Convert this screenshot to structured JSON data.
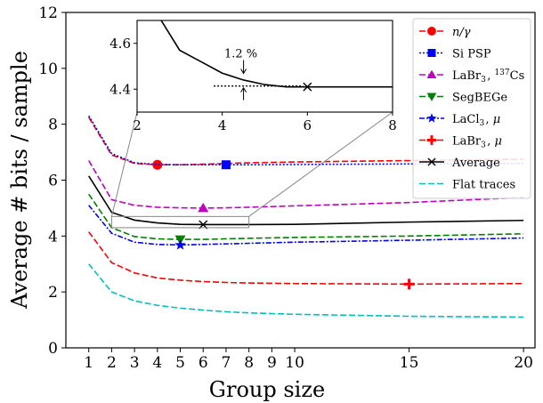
{
  "chart_data": {
    "type": "line",
    "title": "",
    "xlabel": "Group size",
    "ylabel": "Average # bits / sample",
    "xlim": [
      0,
      20.5
    ],
    "ylim": [
      0,
      12
    ],
    "xticks": [
      1,
      2,
      3,
      4,
      5,
      6,
      7,
      8,
      9,
      10,
      15,
      20
    ],
    "xticks_labels": [
      "1",
      "2",
      "3",
      "4",
      "5",
      "6",
      "7",
      "8",
      "9",
      "10",
      "15",
      "20"
    ],
    "yticks": [
      0,
      2,
      4,
      6,
      8,
      10,
      12
    ],
    "yticks_labels": [
      "0",
      "2",
      "4",
      "6",
      "8",
      "10",
      "12"
    ],
    "x": [
      1,
      2,
      3,
      4,
      5,
      6,
      7,
      8,
      10,
      15,
      20
    ],
    "series": [
      {
        "name": "n/γ",
        "color": "#ff0000",
        "dash": "dashed",
        "marker": "circle",
        "marker_x": 4,
        "values": [
          8.25,
          6.9,
          6.6,
          6.55,
          6.55,
          6.57,
          6.6,
          6.62,
          6.65,
          6.7,
          6.75
        ]
      },
      {
        "name": "Si PSP",
        "color": "#0000ff",
        "dash": "dotted",
        "marker": "square",
        "marker_x": 7,
        "values": [
          8.3,
          6.95,
          6.62,
          6.56,
          6.55,
          6.55,
          6.55,
          6.55,
          6.56,
          6.58,
          6.6
        ]
      },
      {
        "name": "LaBr3, 137Cs",
        "color": "#c000c0",
        "dash": "dashed",
        "marker": "triangle-up",
        "marker_x": 6,
        "values": [
          6.7,
          5.3,
          5.1,
          5.03,
          5.01,
          5.0,
          5.01,
          5.03,
          5.08,
          5.2,
          5.38
        ]
      },
      {
        "name": "SegBEGe",
        "color": "#008000",
        "dash": "dashed",
        "marker": "triangle-down",
        "marker_x": 5,
        "values": [
          5.5,
          4.3,
          3.98,
          3.9,
          3.88,
          3.88,
          3.9,
          3.92,
          3.95,
          4.0,
          4.08
        ]
      },
      {
        "name": "LaCl3, μ",
        "color": "#0000ff",
        "dash": "dashdot",
        "marker": "star",
        "marker_x": 5,
        "values": [
          5.1,
          4.1,
          3.78,
          3.7,
          3.68,
          3.7,
          3.72,
          3.74,
          3.78,
          3.85,
          3.93
        ]
      },
      {
        "name": "LaBr3, μ",
        "color": "#ff0000",
        "dash": "dashed",
        "marker": "plus",
        "marker_x": 15,
        "values": [
          4.15,
          3.05,
          2.68,
          2.5,
          2.42,
          2.37,
          2.34,
          2.32,
          2.3,
          2.28,
          2.3
        ]
      },
      {
        "name": "Average",
        "color": "#000000",
        "dash": "solid",
        "marker": "x",
        "marker_x": 6,
        "values": [
          6.15,
          4.85,
          4.57,
          4.47,
          4.42,
          4.41,
          4.41,
          4.41,
          4.42,
          4.5,
          4.56
        ]
      },
      {
        "name": "Flat traces",
        "color": "#00bfbf",
        "dash": "dashed",
        "marker": "none",
        "marker_x": null,
        "values": [
          3.0,
          2.0,
          1.68,
          1.52,
          1.42,
          1.35,
          1.29,
          1.25,
          1.2,
          1.13,
          1.1
        ]
      }
    ],
    "legend": {
      "placement": "upper-right",
      "entries": [
        {
          "prefix": "",
          "italic": "n/γ",
          "sup": "",
          "suffix": ""
        },
        {
          "prefix": "Si PSP",
          "italic": "",
          "sup": "",
          "suffix": ""
        },
        {
          "prefix": "LaBr",
          "sub": "3",
          "mid": ", ",
          "sup": "137",
          "suffix": "Cs",
          "italic": ""
        },
        {
          "prefix": "SegBEGe",
          "italic": "",
          "sup": "",
          "suffix": ""
        },
        {
          "prefix": "LaCl",
          "sub": "3",
          "mid": ", ",
          "italic": "μ",
          "sup": "",
          "suffix": ""
        },
        {
          "prefix": "LaBr",
          "sub": "3",
          "mid": ", ",
          "italic": "μ",
          "sup": "",
          "suffix": ""
        },
        {
          "prefix": "Average",
          "italic": "",
          "sup": "",
          "suffix": ""
        },
        {
          "prefix": "Flat traces",
          "italic": "",
          "sup": "",
          "suffix": ""
        }
      ]
    },
    "inset": {
      "xlim": [
        2,
        8
      ],
      "ylim": [
        4.3,
        4.7
      ],
      "xticks": [
        2,
        4,
        6,
        8
      ],
      "xticks_labels": [
        "2",
        "4",
        "6",
        "8"
      ],
      "yticks": [
        4.4,
        4.6
      ],
      "yticks_labels": [
        "4.4",
        "4.6"
      ],
      "series_x": [
        2,
        2.5,
        3,
        3.5,
        4,
        4.5,
        5,
        5.5,
        6,
        7,
        8
      ],
      "series_y": [
        4.85,
        4.72,
        4.57,
        4.52,
        4.47,
        4.44,
        4.42,
        4.41,
        4.41,
        4.41,
        4.41
      ],
      "dotted_level": 4.41,
      "dotted_from": 3.8,
      "dotted_to": 5.9,
      "annotation_x": 4.5,
      "annotation_label": "1.2 %",
      "zoom_region": {
        "xlim": [
          2,
          8
        ],
        "ylim": [
          4.3,
          4.7
        ]
      }
    }
  }
}
